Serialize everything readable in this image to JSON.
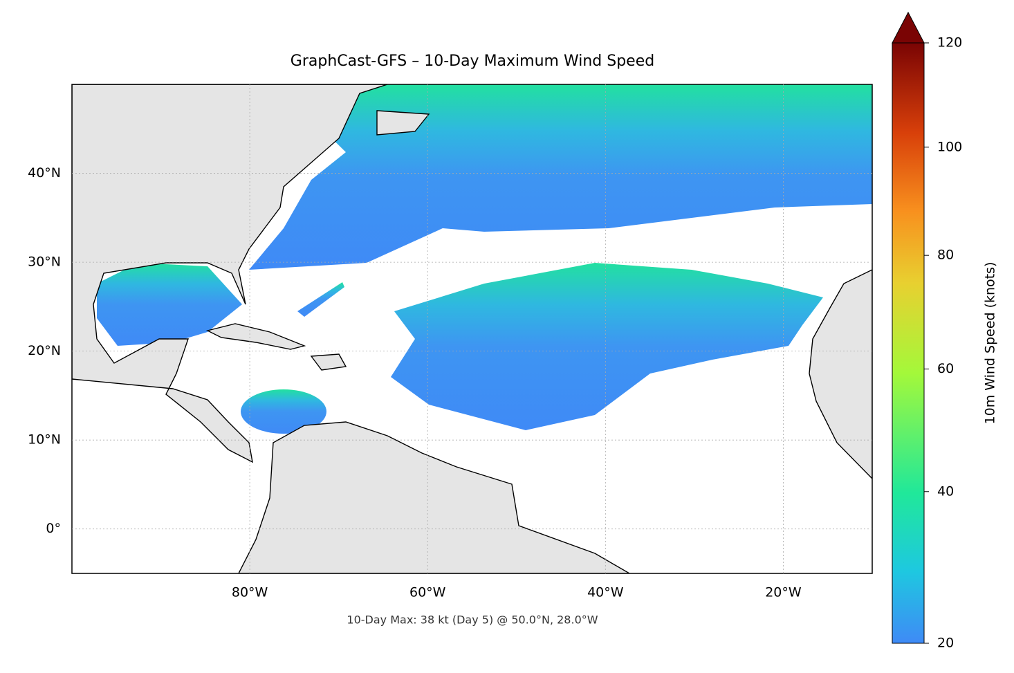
{
  "chart_data": {
    "type": "map",
    "title": "GraphCast-GFS – 10-Day Maximum Wind Speed",
    "annotation": "10-Day Max: 38 kt (Day 5) @ 50.0°N, 28.0°W",
    "xlim": [
      -100,
      -10
    ],
    "ylim": [
      -5,
      50
    ],
    "xticks": [
      {
        "value": -80,
        "label": "80°W"
      },
      {
        "value": -60,
        "label": "60°W"
      },
      {
        "value": -40,
        "label": "40°W"
      },
      {
        "value": -20,
        "label": "20°W"
      }
    ],
    "yticks": [
      {
        "value": 0,
        "label": "0°"
      },
      {
        "value": 10,
        "label": "10°N"
      },
      {
        "value": 20,
        "label": "20°N"
      },
      {
        "value": 30,
        "label": "30°N"
      },
      {
        "value": 40,
        "label": "40°N"
      }
    ],
    "grid": true,
    "colorbar": {
      "label": "10m Wind Speed (knots)",
      "lim": [
        20,
        120
      ],
      "ticks": [
        20,
        40,
        60,
        80,
        100,
        120
      ]
    }
  }
}
